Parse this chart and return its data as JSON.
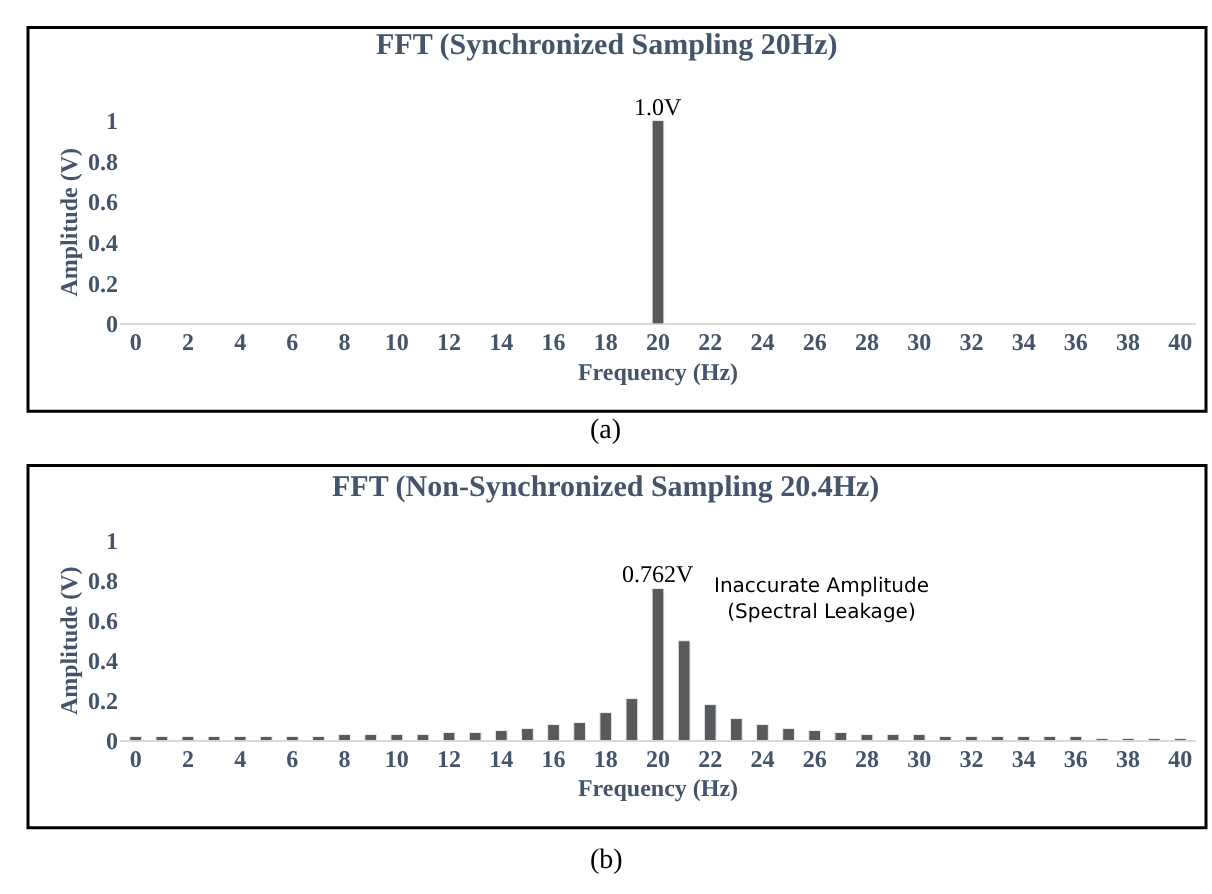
{
  "chart_data": [
    {
      "type": "bar",
      "title": "FFT (Synchronized Sampling 20Hz)",
      "xlabel": "Frequency (Hz)",
      "ylabel": "Amplitude (V)",
      "x": [
        20
      ],
      "values": [
        1.0
      ],
      "value_labels": [
        "1.0V"
      ],
      "color": "#595959",
      "xlim": [
        -0.6,
        40.6
      ],
      "xticks": [
        0,
        2,
        4,
        6,
        8,
        10,
        12,
        14,
        16,
        18,
        20,
        22,
        24,
        26,
        28,
        30,
        32,
        34,
        36,
        38,
        40
      ],
      "ylim": [
        0,
        1
      ],
      "yticks": [
        0,
        0.2,
        0.4,
        0.6,
        0.8,
        1
      ],
      "annotations": [
        "(a)"
      ]
    },
    {
      "type": "bar",
      "title": "FFT (Non-Synchronized Sampling 20.4Hz)",
      "xlabel": "Frequency (Hz)",
      "ylabel": "Amplitude (V)",
      "x": [
        0,
        1,
        2,
        3,
        4,
        5,
        6,
        7,
        8,
        9,
        10,
        11,
        12,
        13,
        14,
        15,
        16,
        17,
        18,
        19,
        20,
        21,
        22,
        23,
        24,
        25,
        26,
        27,
        28,
        29,
        30,
        31,
        32,
        33,
        34,
        35,
        36,
        37,
        38,
        39,
        40
      ],
      "values": [
        0.02,
        0.02,
        0.02,
        0.02,
        0.02,
        0.02,
        0.02,
        0.02,
        0.03,
        0.03,
        0.03,
        0.03,
        0.04,
        0.04,
        0.05,
        0.06,
        0.08,
        0.09,
        0.14,
        0.21,
        0.762,
        0.5,
        0.18,
        0.11,
        0.08,
        0.06,
        0.05,
        0.04,
        0.03,
        0.03,
        0.03,
        0.02,
        0.02,
        0.02,
        0.02,
        0.02,
        0.02,
        0.01,
        0.01,
        0.01,
        0.01
      ],
      "value_labels": [
        null,
        null,
        null,
        null,
        null,
        null,
        null,
        null,
        null,
        null,
        null,
        null,
        null,
        null,
        null,
        null,
        null,
        null,
        null,
        null,
        "0.762V",
        null,
        null,
        null,
        null,
        null,
        null,
        null,
        null,
        null,
        null,
        null,
        null,
        null,
        null,
        null,
        null,
        null,
        null,
        null,
        null
      ],
      "color": "#595959",
      "xlim": [
        -0.6,
        40.6
      ],
      "xticks": [
        0,
        2,
        4,
        6,
        8,
        10,
        12,
        14,
        16,
        18,
        20,
        22,
        24,
        26,
        28,
        30,
        32,
        34,
        36,
        38,
        40
      ],
      "ylim": [
        0,
        1
      ],
      "yticks": [
        0,
        0.2,
        0.4,
        0.6,
        0.8,
        1
      ],
      "annotations": [
        "Inaccurate Amplitude\n(Spectral Leakage)",
        "(b)"
      ]
    }
  ]
}
